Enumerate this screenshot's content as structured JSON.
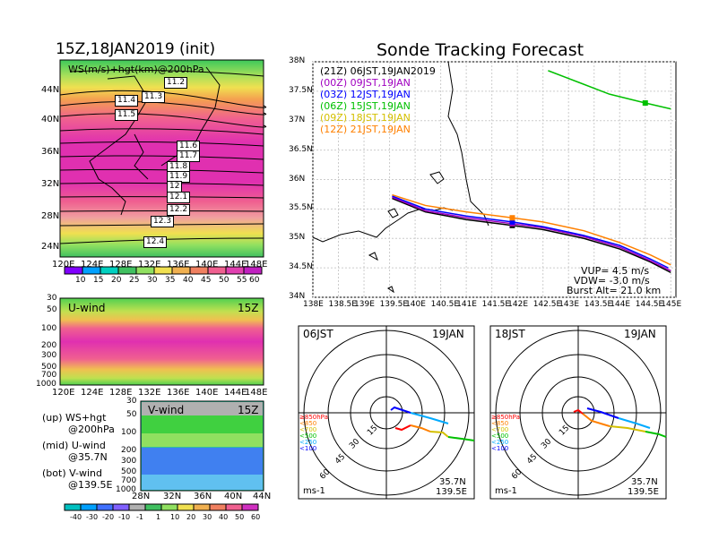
{
  "left_panel": {
    "title": "15Z,18JAN2019 (init)",
    "map": {
      "label": "WS(m/s)+hgt(km)@200hPa",
      "lat_ticks": [
        "44N",
        "40N",
        "36N",
        "32N",
        "28N",
        "24N"
      ],
      "lon_ticks": [
        "120E",
        "124E",
        "128E",
        "132E",
        "136E",
        "140E",
        "144E",
        "148E"
      ],
      "contour_labels": [
        "11.2",
        "11.3",
        "11.4",
        "11.5",
        "11.6",
        "11.7",
        "11.8",
        "11.9",
        "12",
        "12.1",
        "12.2",
        "12.3",
        "12.4"
      ]
    },
    "colorbar_top": [
      "10",
      "15",
      "20",
      "25",
      "30",
      "35",
      "40",
      "45",
      "50",
      "55",
      "60"
    ],
    "uwind": {
      "label": "U-wind",
      "time": "15Z",
      "y_ticks": [
        "30",
        "50",
        "100",
        "200",
        "300",
        "500",
        "700",
        "1000"
      ],
      "x_ticks": [
        "120E",
        "124E",
        "128E",
        "132E",
        "136E",
        "140E",
        "144E",
        "148E"
      ]
    },
    "vwind": {
      "label": "V-wind",
      "time": "15Z",
      "y_ticks": [
        "30",
        "50",
        "100",
        "200",
        "300",
        "500",
        "700",
        "1000"
      ],
      "x_ticks": [
        "28N",
        "32N",
        "36N",
        "40N",
        "44N"
      ]
    },
    "notes": [
      "(up) WS+hgt",
      "@200hPa",
      "(mid) U-wind",
      "@35.7N",
      "(bot) V-wind",
      "@139.5E"
    ],
    "colorbar_bottom": [
      "-40",
      "-30",
      "-20",
      "-10",
      "-1",
      "1",
      "10",
      "20",
      "30",
      "40",
      "50",
      "60"
    ]
  },
  "right_panel": {
    "title": "Sonde Tracking Forecast",
    "chart_data": {
      "type": "line",
      "xlim": [
        138,
        145.1
      ],
      "ylim": [
        34,
        38
      ],
      "x_ticks": [
        "138E",
        "138.5E",
        "139E",
        "139.5E",
        "140E",
        "140.5E",
        "141E",
        "141.5E",
        "142E",
        "142.5E",
        "143E",
        "143.5E",
        "144E",
        "144.5E",
        "145E"
      ],
      "y_ticks": [
        "38N",
        "37.5N",
        "37N",
        "36.5N",
        "36N",
        "35.5N",
        "35N",
        "34.5N",
        "34N"
      ],
      "series": [
        {
          "name": "(21Z) 06JST,19JAN2019",
          "color": "#000000",
          "points": [
            [
              139.55,
              35.68
            ],
            [
              140.2,
              35.45
            ],
            [
              141.0,
              35.32
            ],
            [
              141.9,
              35.22
            ],
            [
              142.5,
              35.15
            ],
            [
              143.3,
              35.0
            ],
            [
              144.0,
              34.82
            ],
            [
              144.6,
              34.6
            ],
            [
              145.0,
              34.42
            ]
          ]
        },
        {
          "name": "(00Z) 09JST,19JAN",
          "color": "#a000c0",
          "points": [
            [
              139.55,
              35.7
            ],
            [
              140.2,
              35.47
            ],
            [
              141.0,
              35.35
            ],
            [
              141.9,
              35.25
            ],
            [
              142.5,
              35.18
            ],
            [
              143.3,
              35.03
            ],
            [
              144.0,
              34.85
            ],
            [
              144.6,
              34.62
            ],
            [
              145.0,
              34.45
            ]
          ]
        },
        {
          "name": "(03Z) 12JST,19JAN",
          "color": "#0000ff",
          "points": [
            [
              139.55,
              35.72
            ],
            [
              140.2,
              35.5
            ],
            [
              141.0,
              35.38
            ],
            [
              141.9,
              35.28
            ],
            [
              142.5,
              35.2
            ],
            [
              143.3,
              35.05
            ],
            [
              144.0,
              34.88
            ],
            [
              144.6,
              34.65
            ],
            [
              144.95,
              34.5
            ]
          ]
        },
        {
          "name": "(06Z) 15JST,19JAN",
          "color": "#00c000",
          "points": [
            [
              142.6,
              37.85
            ],
            [
              143.2,
              37.65
            ],
            [
              143.8,
              37.45
            ],
            [
              144.5,
              37.3
            ],
            [
              145.0,
              37.2
            ]
          ]
        },
        {
          "name": "(09Z) 18JST,19JAN",
          "color": "#d4c000",
          "points": []
        },
        {
          "name": "(12Z) 21JST,19JAN",
          "color": "#ff8000",
          "points": [
            [
              139.55,
              35.74
            ],
            [
              140.2,
              35.56
            ],
            [
              141.0,
              35.45
            ],
            [
              141.9,
              35.35
            ],
            [
              142.5,
              35.28
            ],
            [
              143.3,
              35.13
            ],
            [
              144.0,
              34.93
            ],
            [
              144.6,
              34.72
            ],
            [
              145.0,
              34.55
            ]
          ]
        }
      ]
    },
    "info": [
      "VUP= 4.5 m/s",
      "VDW= -3.0 m/s",
      "Burst Alt= 21.0 km"
    ],
    "hodographs": [
      {
        "time": "06JST",
        "date": "19JAN",
        "loc1": "35.7N",
        "loc2": "139.5E",
        "unit": "ms-1",
        "levels": [
          "≥850hPa",
          "<850",
          "<700",
          "<500",
          "<250",
          "<100"
        ],
        "level_colors": [
          "#ff0000",
          "#ff8000",
          "#d4c000",
          "#00c000",
          "#00aaff",
          "#0000ff"
        ],
        "rings": [
          "15",
          "30",
          "45",
          "60"
        ]
      },
      {
        "time": "18JST",
        "date": "19JAN",
        "loc1": "35.7N",
        "loc2": "139.5E",
        "unit": "ms-1",
        "levels": [
          "≥850hPa",
          "<850",
          "<700",
          "<500",
          "<250",
          "<100"
        ],
        "level_colors": [
          "#ff0000",
          "#ff8000",
          "#d4c000",
          "#00c000",
          "#00aaff",
          "#0000ff"
        ],
        "rings": [
          "15",
          "30",
          "45",
          "60"
        ]
      }
    ]
  }
}
